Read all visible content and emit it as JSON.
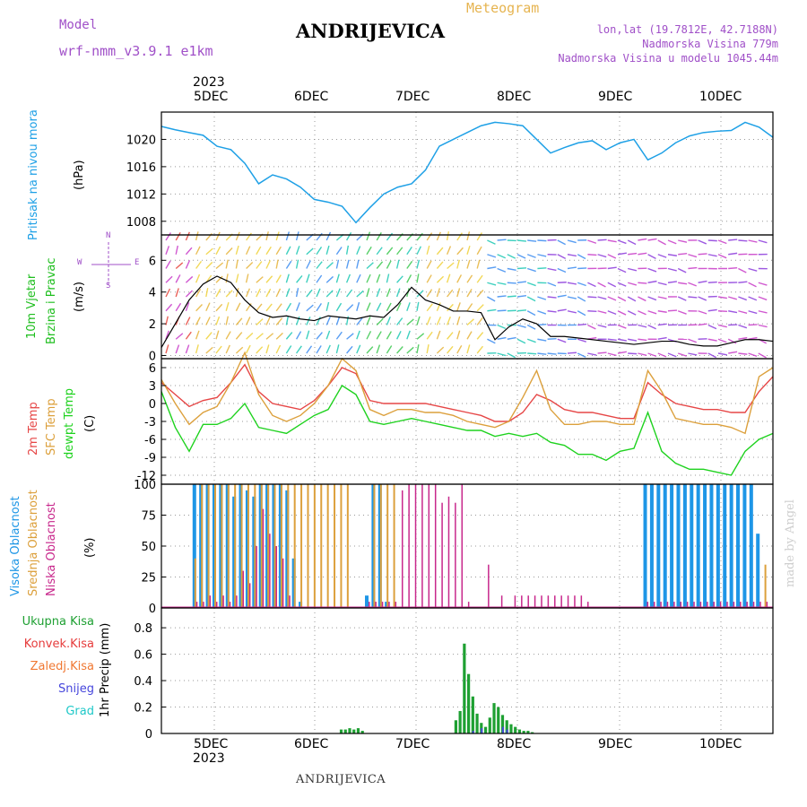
{
  "header": {
    "model_label": "Model",
    "model_name": "wrf-nmm_v3.9.1 e1km",
    "title": "ANDRIJEVICA",
    "meteogram_label": "Meteogram",
    "lonlat": "lon,lat (19.7812E, 42.7188N)",
    "altitude": "Nadmorska Visina 779m",
    "model_altitude": "Nadmorska Visina u modelu 1045.44m",
    "footer_title": "ANDRIJEVICA",
    "credit": "made by Angel"
  },
  "colors": {
    "pressure": "#1ea0e6",
    "wind_label": "#1ebe1e",
    "temp2m": "#e64646",
    "sfc": "#dca03c",
    "dewpt": "#1ed21e",
    "cloud_high": "#1e96e6",
    "cloud_mid": "#dca03c",
    "cloud_low": "#c8288c",
    "precip_total": "#1ea032",
    "precip_conv": "#e63c3c",
    "precip_frozen": "#f07832",
    "precip_snow": "#4646dc",
    "precip_hail": "#1ec8c8",
    "model_text": "#a050c8",
    "meteogram_text": "#e6b450"
  },
  "time_axis": {
    "top_year": "2023",
    "bottom_year": "2023",
    "days": [
      "5DEC",
      "6DEC",
      "7DEC",
      "8DEC",
      "9DEC",
      "10DEC"
    ]
  },
  "panels": {
    "pressure": {
      "label": "Pritisak na nivou mora",
      "unit": "(hPa)",
      "ticks": [
        "1008",
        "1012",
        "1016",
        "1020"
      ]
    },
    "wind": {
      "label1": "10m Vjetar",
      "label2": "Brzina i Pravac",
      "unit": "(m/s)",
      "ticks": [
        "0",
        "2",
        "4",
        "6"
      ],
      "compass_w": "W",
      "compass_e": "E",
      "compass_n": "N",
      "compass_s": "S"
    },
    "temp": {
      "label1": "2m Temp",
      "label2": "SFC Temp",
      "label3": "dewpt Temp",
      "unit": "(C)",
      "ticks": [
        "-12",
        "-9",
        "-6",
        "-3",
        "0",
        "3",
        "6"
      ]
    },
    "cloud": {
      "label1": "Visoka Oblacnost",
      "label2": "Srednja Oblacnost",
      "label3": "Niska Oblacnost",
      "unit": "(%)",
      "ticks": [
        "0",
        "25",
        "50",
        "75",
        "100"
      ]
    },
    "precip": {
      "legend": [
        "Ukupna Kisa",
        "Konvek.Kisa",
        "Zaledj.Kisa",
        "Snijeg",
        "Grad"
      ],
      "unit": "1hr Precip (mm)",
      "ticks": [
        "0",
        "0.2",
        "0.4",
        "0.6",
        "0.8"
      ]
    }
  },
  "chart_data": [
    {
      "type": "line",
      "title": "Pritisak na nivou mora",
      "ylabel": "(hPa)",
      "ylim": [
        1006,
        1024
      ],
      "x_start": "2023-12-04 12:00",
      "x_step_hours": 6,
      "series": [
        {
          "name": "Pritisak na nivou mora",
          "values": [
            1021.9,
            1021.4,
            1021.0,
            1020.6,
            1019.0,
            1018.5,
            1016.5,
            1013.5,
            1014.8,
            1014.2,
            1013.0,
            1011.2,
            1010.8,
            1010.2,
            1007.8,
            1010.0,
            1012.0,
            1013.0,
            1013.5,
            1015.5,
            1019.0,
            1020.0,
            1021.0,
            1022.0,
            1022.5,
            1022.3,
            1022.0,
            1020.0,
            1018.0,
            1018.8,
            1019.5,
            1019.8,
            1018.5,
            1019.5,
            1020.0,
            1017.0,
            1018.0,
            1019.5,
            1020.5,
            1021.0,
            1021.2,
            1021.3,
            1022.5,
            1021.8,
            1020.3
          ]
        }
      ]
    },
    {
      "type": "line",
      "title": "10m Vjetar Brzina i Pravac",
      "ylabel": "(m/s)",
      "ylim": [
        -0.2,
        7.6
      ],
      "x_start": "2023-12-04 12:00",
      "x_step_hours": 6,
      "series": [
        {
          "name": "Brzina",
          "values": [
            0.5,
            2.0,
            3.5,
            4.5,
            5.0,
            4.6,
            3.5,
            2.7,
            2.4,
            2.5,
            2.3,
            2.2,
            2.5,
            2.4,
            2.3,
            2.5,
            2.4,
            3.2,
            4.3,
            3.5,
            3.2,
            2.8,
            2.8,
            2.7,
            1.0,
            1.8,
            2.3,
            2.0,
            1.2,
            1.2,
            1.1,
            1.0,
            0.9,
            0.8,
            0.7,
            0.8,
            0.9,
            0.9,
            0.7,
            0.6,
            0.6,
            0.8,
            1.0,
            1.0,
            0.9
          ]
        }
      ]
    },
    {
      "type": "line",
      "title": "2m Temp / SFC Temp / dewpt Temp",
      "ylabel": "(C)",
      "ylim": [
        -13.5,
        7.5
      ],
      "x_start": "2023-12-04 12:00",
      "x_step_hours": 6,
      "series": [
        {
          "name": "2m Temp",
          "values": [
            3.5,
            1.5,
            -0.5,
            0.5,
            1.0,
            3.5,
            6.5,
            2.0,
            0.0,
            -0.5,
            -1.0,
            0.5,
            3.0,
            6.0,
            5.0,
            0.5,
            0.0,
            0.0,
            0.0,
            0.0,
            -0.5,
            -1.0,
            -1.5,
            -2.0,
            -3.0,
            -3.0,
            -1.5,
            1.5,
            0.5,
            -1.0,
            -1.5,
            -1.5,
            -2.0,
            -2.5,
            -2.5,
            3.5,
            1.5,
            0.0,
            -0.5,
            -1.0,
            -1.0,
            -1.5,
            -1.5,
            2.0,
            4.5
          ]
        },
        {
          "name": "SFC Temp",
          "values": [
            4.0,
            0.0,
            -3.5,
            -1.5,
            -0.5,
            3.5,
            8.5,
            1.5,
            -2.0,
            -3.0,
            -2.0,
            0.0,
            3.0,
            7.5,
            5.5,
            -1.0,
            -2.0,
            -1.0,
            -1.0,
            -1.5,
            -1.5,
            -2.0,
            -3.0,
            -3.5,
            -4.0,
            -3.0,
            1.0,
            5.5,
            -1.0,
            -3.5,
            -3.5,
            -3.0,
            -3.0,
            -3.5,
            -3.5,
            5.5,
            2.0,
            -2.5,
            -3.0,
            -3.5,
            -3.5,
            -4.0,
            -5.0,
            4.5,
            6.0
          ]
        },
        {
          "name": "dewpt Temp",
          "values": [
            2.0,
            -4.0,
            -8.0,
            -3.5,
            -3.5,
            -2.5,
            0.0,
            -4.0,
            -4.5,
            -5.0,
            -3.5,
            -2.0,
            -1.0,
            3.0,
            1.5,
            -3.0,
            -3.5,
            -3.0,
            -2.5,
            -3.0,
            -3.5,
            -4.0,
            -4.5,
            -4.5,
            -5.5,
            -5.0,
            -5.5,
            -5.0,
            -6.5,
            -7.0,
            -8.5,
            -8.5,
            -9.5,
            -8.0,
            -7.5,
            -1.5,
            -8.0,
            -10.0,
            -11.0,
            -11.0,
            -11.5,
            -12.0,
            -8.0,
            -6.0,
            -5.0
          ]
        }
      ]
    },
    {
      "type": "bar",
      "title": "Visoka / Srednja / Niska Oblacnost",
      "ylabel": "(%)",
      "ylim": [
        0,
        100
      ],
      "x_start": "2023-12-04 12:00",
      "x_step_hours": 3,
      "series": [
        {
          "name": "Visoka Oblacnost",
          "values": [
            0,
            0,
            100,
            100,
            100,
            100,
            100,
            100,
            90,
            100,
            95,
            90,
            100,
            100,
            100,
            100,
            95,
            40,
            5,
            0,
            0,
            0,
            0,
            0,
            0,
            0,
            0,
            0,
            10,
            100,
            100,
            5,
            0,
            0,
            0,
            0,
            0,
            0,
            0,
            0,
            0,
            0,
            0,
            0,
            0,
            0,
            0,
            0,
            0,
            0,
            0,
            0,
            0,
            0,
            0,
            0,
            0,
            0,
            0,
            0,
            0,
            0,
            0,
            0,
            0,
            0,
            0,
            0,
            0,
            0,
            100,
            100,
            100,
            100,
            100,
            100,
            100,
            100,
            100,
            100,
            100,
            100,
            100,
            100,
            100,
            100,
            100,
            60,
            0,
            0
          ]
        },
        {
          "name": "Srednja Oblacnost",
          "values": [
            0,
            0,
            40,
            100,
            100,
            100,
            100,
            100,
            100,
            100,
            100,
            100,
            100,
            100,
            100,
            100,
            100,
            100,
            100,
            100,
            100,
            100,
            100,
            100,
            100,
            100,
            0,
            0,
            0,
            100,
            100,
            100,
            100,
            0,
            0,
            0,
            0,
            0,
            0,
            0,
            0,
            0,
            0,
            0,
            0,
            0,
            0,
            0,
            0,
            0,
            0,
            0,
            0,
            0,
            0,
            0,
            0,
            0,
            0,
            0,
            0,
            0,
            0,
            0,
            0,
            0,
            0,
            0,
            0,
            0,
            0,
            0,
            0,
            0,
            0,
            0,
            0,
            0,
            0,
            0,
            0,
            0,
            0,
            0,
            0,
            0,
            0,
            0,
            35,
            0
          ]
        },
        {
          "name": "Niska Oblacnost",
          "values": [
            0,
            0,
            5,
            5,
            10,
            5,
            10,
            5,
            10,
            30,
            20,
            50,
            80,
            60,
            50,
            40,
            10,
            0,
            0,
            0,
            0,
            0,
            0,
            0,
            0,
            0,
            0,
            0,
            5,
            5,
            5,
            5,
            5,
            95,
            100,
            100,
            100,
            100,
            100,
            85,
            90,
            85,
            100,
            5,
            0,
            0,
            35,
            0,
            10,
            0,
            10,
            10,
            10,
            10,
            10,
            10,
            10,
            10,
            10,
            10,
            10,
            5,
            0,
            0,
            0,
            0,
            0,
            0,
            0,
            0,
            5,
            5,
            5,
            5,
            5,
            5,
            5,
            5,
            5,
            5,
            5,
            5,
            5,
            5,
            5,
            5,
            5,
            5,
            5,
            0
          ]
        }
      ]
    },
    {
      "type": "bar",
      "title": "1hr Precip (mm)",
      "ylabel": "1hr Precip (mm)",
      "ylim": [
        0,
        0.95
      ],
      "series": [
        {
          "name": "Ukupna Kisa",
          "x_hours": [
            42,
            43,
            44,
            45,
            46,
            47,
            69,
            70,
            71,
            72,
            73,
            74,
            75,
            76,
            77,
            78,
            79,
            80,
            81,
            82,
            83,
            84,
            85,
            86,
            87
          ],
          "values": [
            0.03,
            0.03,
            0.04,
            0.03,
            0.04,
            0.02,
            0.1,
            0.17,
            0.68,
            0.45,
            0.28,
            0.15,
            0.08,
            0.05,
            0.12,
            0.23,
            0.2,
            0.14,
            0.1,
            0.07,
            0.05,
            0.03,
            0.02,
            0.02,
            0.01
          ]
        },
        {
          "name": "Snijeg",
          "x_hours": [
            73,
            75,
            80,
            81
          ],
          "values": [
            0.02,
            0.04,
            0.05,
            0.03
          ]
        }
      ]
    }
  ]
}
